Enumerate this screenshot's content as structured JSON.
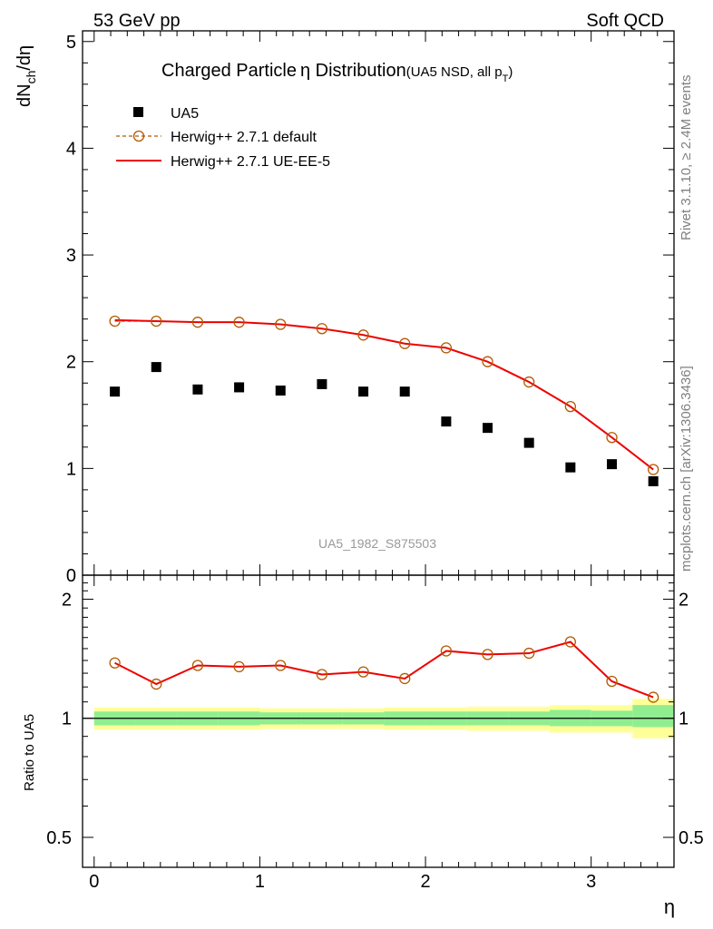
{
  "header": {
    "left": "53 GeV pp",
    "right": "Soft QCD"
  },
  "side": {
    "rivet": "Rivet 3.1.10, ≥ 2.4M events",
    "mcplots": "mcplots.cern.ch [arXiv:1306.3436]"
  },
  "chart_data": {
    "type": "scatter",
    "title": {
      "main": "Charged Particle",
      "eta": "η",
      "rest": " Distribution",
      "note": "(UA5 NSD, all p",
      "note_sub": "T",
      "note_end": ")"
    },
    "watermark": "UA5_1982_S875503",
    "xlabel": "η",
    "ylabel": "dN",
    "ylabel_sub": "ch",
    "ylabel_end": "/dη",
    "ratio_ylabel": "Ratio to UA5",
    "xlim": [
      -0.07,
      3.5
    ],
    "ylim": [
      0,
      5.1
    ],
    "ratio_ylim": [
      0.42,
      2.3
    ],
    "x_ticks": [
      "0",
      "1",
      "2",
      "3"
    ],
    "y_ticks": [
      "1",
      "2",
      "3",
      "4",
      "5"
    ],
    "y_tick_zero": "0",
    "ratio_ticks": [
      "0.5",
      "1",
      "2"
    ],
    "x": [
      0.125,
      0.375,
      0.625,
      0.875,
      1.125,
      1.375,
      1.625,
      1.875,
      2.125,
      2.375,
      2.625,
      2.875,
      3.125,
      3.375
    ],
    "series": [
      {
        "name": "UA5",
        "color": "#000000",
        "marker": "square",
        "values": [
          1.72,
          1.95,
          1.74,
          1.76,
          1.73,
          1.79,
          1.72,
          1.72,
          1.44,
          1.38,
          1.24,
          1.01,
          1.04,
          0.88
        ]
      },
      {
        "name": "Herwig++ 2.7.1 default",
        "color": "#b35900",
        "marker": "open-circle",
        "line": "dashed",
        "values": [
          2.38,
          2.38,
          2.37,
          2.37,
          2.35,
          2.31,
          2.25,
          2.17,
          2.13,
          2.0,
          1.81,
          1.58,
          1.29,
          0.99
        ]
      },
      {
        "name": "Herwig++ 2.7.1 UE-EE-5",
        "color": "#ee0000",
        "marker": "none",
        "line": "solid",
        "values": [
          2.39,
          2.38,
          2.37,
          2.37,
          2.35,
          2.31,
          2.25,
          2.17,
          2.13,
          2.0,
          1.81,
          1.58,
          1.29,
          0.99
        ]
      }
    ],
    "ratio": {
      "reference": "UA5",
      "values": [
        1.38,
        1.22,
        1.36,
        1.35,
        1.36,
        1.29,
        1.31,
        1.26,
        1.48,
        1.45,
        1.46,
        1.56,
        1.24,
        1.13
      ],
      "band_inner": [
        [
          0.96,
          1.04
        ],
        [
          0.96,
          1.04
        ],
        [
          0.96,
          1.04
        ],
        [
          0.96,
          1.04
        ],
        [
          0.965,
          1.035
        ],
        [
          0.965,
          1.035
        ],
        [
          0.965,
          1.035
        ],
        [
          0.96,
          1.04
        ],
        [
          0.96,
          1.04
        ],
        [
          0.96,
          1.04
        ],
        [
          0.96,
          1.04
        ],
        [
          0.955,
          1.05
        ],
        [
          0.955,
          1.045
        ],
        [
          0.95,
          1.08
        ]
      ],
      "band_outer": [
        [
          0.935,
          1.065
        ],
        [
          0.935,
          1.065
        ],
        [
          0.935,
          1.065
        ],
        [
          0.935,
          1.065
        ],
        [
          0.94,
          1.06
        ],
        [
          0.94,
          1.06
        ],
        [
          0.94,
          1.06
        ],
        [
          0.935,
          1.065
        ],
        [
          0.935,
          1.065
        ],
        [
          0.93,
          1.07
        ],
        [
          0.93,
          1.07
        ],
        [
          0.92,
          1.08
        ],
        [
          0.92,
          1.08
        ],
        [
          0.89,
          1.12
        ]
      ],
      "band_inner_color": "#90ee90",
      "band_outer_color": "#ffff99"
    },
    "legend_position": "top-left",
    "grid": false
  }
}
